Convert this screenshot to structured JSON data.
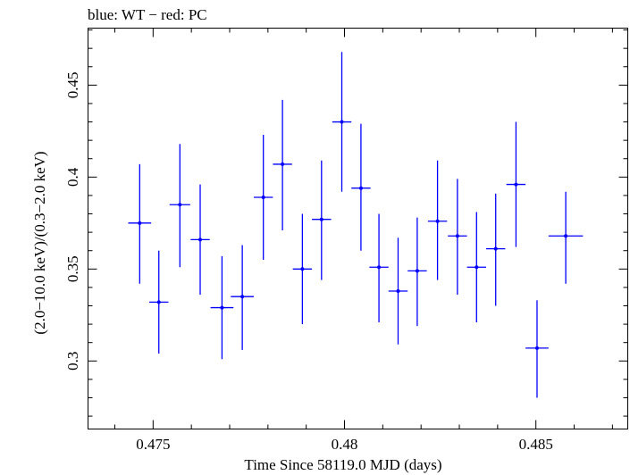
{
  "chart_data": {
    "type": "scatter",
    "title": "blue: WT − red: PC",
    "xlabel": "Time Since 58119.0 MJD (days)",
    "ylabel": "(2.0−10.0 keV)/(0.3−2.0 keV)",
    "xlim": [
      0.4733,
      0.4874
    ],
    "ylim": [
      0.263,
      0.481
    ],
    "x_ticks": [
      {
        "value": 0.475,
        "label": "0.475"
      },
      {
        "value": 0.48,
        "label": "0.48"
      },
      {
        "value": 0.485,
        "label": "0.485"
      }
    ],
    "y_ticks": [
      {
        "value": 0.3,
        "label": "0.3"
      },
      {
        "value": 0.35,
        "label": "0.35"
      },
      {
        "value": 0.4,
        "label": "0.4"
      },
      {
        "value": 0.45,
        "label": "0.45"
      }
    ],
    "series": [
      {
        "color": "#0000ff",
        "points": [
          {
            "x": 0.47465,
            "y": 0.375,
            "xerr": 0.0003,
            "ylo": 0.342,
            "yhi": 0.407
          },
          {
            "x": 0.47515,
            "y": 0.332,
            "xerr": 0.00025,
            "ylo": 0.304,
            "yhi": 0.36
          },
          {
            "x": 0.4757,
            "y": 0.385,
            "xerr": 0.00027,
            "ylo": 0.351,
            "yhi": 0.418
          },
          {
            "x": 0.47623,
            "y": 0.366,
            "xerr": 0.00025,
            "ylo": 0.336,
            "yhi": 0.396
          },
          {
            "x": 0.4768,
            "y": 0.329,
            "xerr": 0.0003,
            "ylo": 0.301,
            "yhi": 0.357
          },
          {
            "x": 0.47733,
            "y": 0.335,
            "xerr": 0.0003,
            "ylo": 0.306,
            "yhi": 0.363
          },
          {
            "x": 0.47788,
            "y": 0.389,
            "xerr": 0.00025,
            "ylo": 0.355,
            "yhi": 0.423
          },
          {
            "x": 0.47838,
            "y": 0.407,
            "xerr": 0.00025,
            "ylo": 0.371,
            "yhi": 0.442
          },
          {
            "x": 0.4789,
            "y": 0.35,
            "xerr": 0.00025,
            "ylo": 0.32,
            "yhi": 0.38
          },
          {
            "x": 0.4794,
            "y": 0.377,
            "xerr": 0.00025,
            "ylo": 0.344,
            "yhi": 0.409
          },
          {
            "x": 0.47993,
            "y": 0.43,
            "xerr": 0.00025,
            "ylo": 0.392,
            "yhi": 0.468
          },
          {
            "x": 0.48043,
            "y": 0.394,
            "xerr": 0.00025,
            "ylo": 0.36,
            "yhi": 0.429
          },
          {
            "x": 0.4809,
            "y": 0.351,
            "xerr": 0.00025,
            "ylo": 0.321,
            "yhi": 0.38
          },
          {
            "x": 0.4814,
            "y": 0.338,
            "xerr": 0.00025,
            "ylo": 0.309,
            "yhi": 0.367
          },
          {
            "x": 0.4819,
            "y": 0.349,
            "xerr": 0.00025,
            "ylo": 0.319,
            "yhi": 0.378
          },
          {
            "x": 0.48243,
            "y": 0.376,
            "xerr": 0.00025,
            "ylo": 0.344,
            "yhi": 0.409
          },
          {
            "x": 0.48295,
            "y": 0.368,
            "xerr": 0.00025,
            "ylo": 0.336,
            "yhi": 0.399
          },
          {
            "x": 0.48345,
            "y": 0.351,
            "xerr": 0.00025,
            "ylo": 0.321,
            "yhi": 0.381
          },
          {
            "x": 0.48395,
            "y": 0.361,
            "xerr": 0.00025,
            "ylo": 0.33,
            "yhi": 0.391
          },
          {
            "x": 0.48448,
            "y": 0.396,
            "xerr": 0.00025,
            "ylo": 0.362,
            "yhi": 0.43
          },
          {
            "x": 0.48503,
            "y": 0.307,
            "xerr": 0.0003,
            "ylo": 0.28,
            "yhi": 0.333
          },
          {
            "x": 0.48578,
            "y": 0.368,
            "xerr": 0.00045,
            "ylo": 0.342,
            "yhi": 0.392
          }
        ]
      }
    ]
  }
}
